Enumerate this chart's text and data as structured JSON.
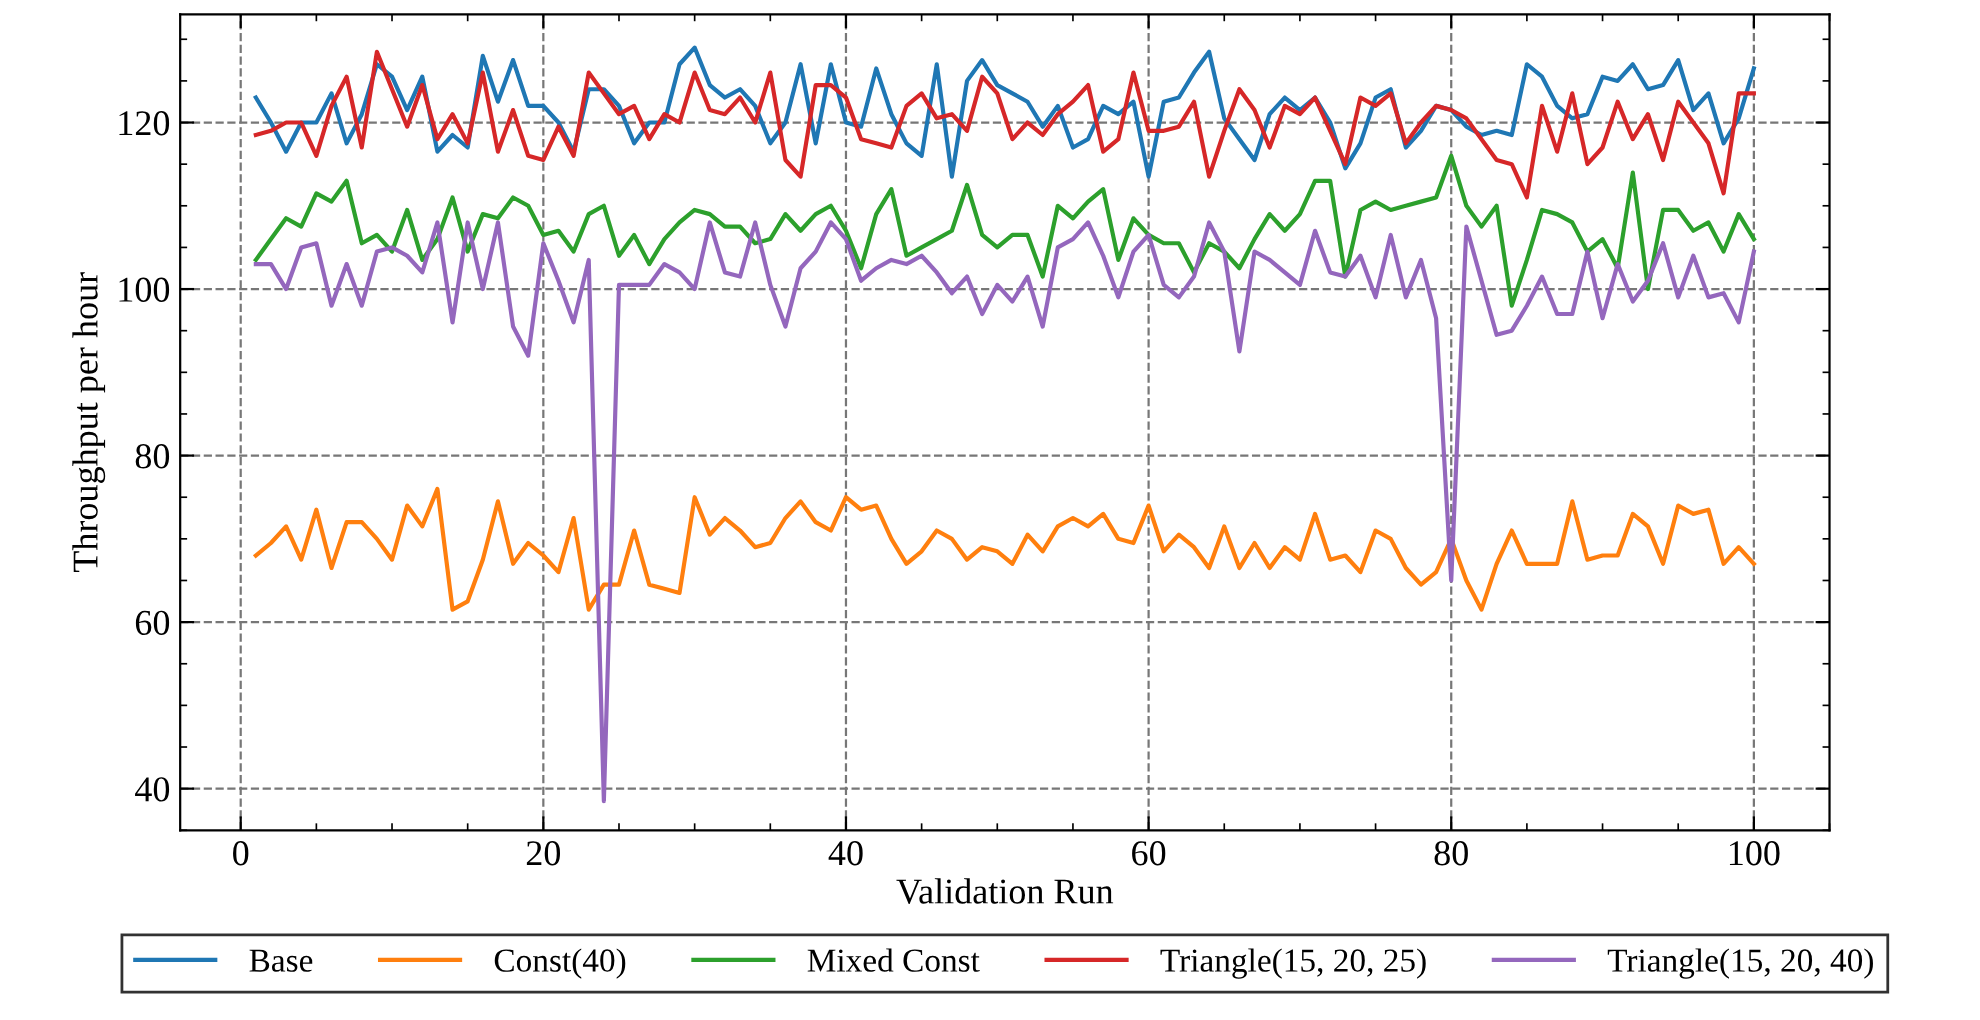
{
  "chart_data": {
    "type": "line",
    "xlabel": "Validation Run",
    "ylabel": "Throughput per hour",
    "x": [
      1,
      2,
      3,
      4,
      5,
      6,
      7,
      8,
      9,
      10,
      11,
      12,
      13,
      14,
      15,
      16,
      17,
      18,
      19,
      20,
      21,
      22,
      23,
      24,
      25,
      26,
      27,
      28,
      29,
      30,
      31,
      32,
      33,
      34,
      35,
      36,
      37,
      38,
      39,
      40,
      41,
      42,
      43,
      44,
      45,
      46,
      47,
      48,
      49,
      50,
      51,
      52,
      53,
      54,
      55,
      56,
      57,
      58,
      59,
      60,
      61,
      62,
      63,
      64,
      65,
      66,
      67,
      68,
      69,
      70,
      71,
      72,
      73,
      74,
      75,
      76,
      77,
      78,
      79,
      80,
      81,
      82,
      83,
      84,
      85,
      86,
      87,
      88,
      89,
      90,
      91,
      92,
      93,
      94,
      95,
      96,
      97,
      98,
      99,
      100
    ],
    "xlim": [
      -4,
      105
    ],
    "xticks": [
      0,
      20,
      40,
      60,
      80,
      100
    ],
    "ylim": [
      35,
      133
    ],
    "yticks": [
      40,
      60,
      80,
      100,
      120
    ],
    "grid": true,
    "legend": "bottom",
    "line_style": "solid",
    "marker": "none",
    "series": [
      {
        "name": "Base",
        "color": "#1f77b4",
        "values": [
          123,
          120,
          116.5,
          120,
          120,
          123.5,
          117.5,
          121,
          127,
          125.5,
          121.5,
          125.5,
          116.5,
          118.5,
          117,
          128,
          122.5,
          127.5,
          122,
          122,
          120,
          116.5,
          124,
          124,
          122,
          117.5,
          120,
          120,
          127,
          129,
          124.5,
          123,
          124,
          122,
          117.5,
          120,
          127,
          117.5,
          127,
          120,
          119.5,
          126.5,
          121,
          117.5,
          116,
          127,
          113.5,
          125,
          127.5,
          124.5,
          123.5,
          122.5,
          119.5,
          122,
          117,
          118,
          122,
          121,
          122.5,
          113.5,
          122.5,
          123,
          126,
          128.5,
          120.5,
          118,
          115.5,
          121,
          123,
          121.5,
          123,
          120,
          114.5,
          117.5,
          123,
          124,
          117,
          119,
          122,
          121.5,
          119.5,
          118.5,
          119,
          118.5,
          127,
          125.5,
          122,
          120.5,
          121,
          125.5,
          125,
          127,
          124,
          124.5,
          127.5,
          121.5,
          123.5,
          117.5,
          120.5,
          126.5
        ]
      },
      {
        "name": "Const(40)",
        "color": "#ff7f0e",
        "values": [
          68,
          69.5,
          71.5,
          67.5,
          73.5,
          66.5,
          72,
          72,
          70,
          67.5,
          74,
          71.5,
          76,
          61.5,
          62.5,
          67.5,
          74.5,
          67,
          69.5,
          68,
          66,
          72.5,
          61.5,
          64.5,
          64.5,
          71,
          64.5,
          64,
          63.5,
          75,
          70.5,
          72.5,
          71,
          69,
          69.5,
          72.5,
          74.5,
          72,
          71,
          75,
          73.5,
          74,
          70,
          67,
          68.5,
          71,
          70,
          67.5,
          69,
          68.5,
          67,
          70.5,
          68.5,
          71.5,
          72.5,
          71.5,
          73,
          70,
          69.5,
          74,
          68.5,
          70.5,
          69,
          66.5,
          71.5,
          66.5,
          69.5,
          66.5,
          69,
          67.5,
          73,
          67.5,
          68,
          66,
          71,
          70,
          66.5,
          64.5,
          66,
          70,
          65,
          61.5,
          67,
          71,
          67,
          67,
          67,
          74.5,
          67.5,
          68,
          68,
          73,
          71.5,
          67,
          74,
          73,
          73.5,
          67,
          69,
          67
        ]
      },
      {
        "name": "Mixed Const",
        "color": "#2ca02c",
        "values": [
          103.5,
          106,
          108.5,
          107.5,
          111.5,
          110.5,
          113,
          105.5,
          106.5,
          104.5,
          109.5,
          103.5,
          106,
          111,
          104.5,
          109,
          108.5,
          111,
          110,
          106.5,
          107,
          104.5,
          109,
          110,
          104,
          106.5,
          103,
          106,
          108,
          109.5,
          109,
          107.5,
          107.5,
          105.5,
          106,
          109,
          107,
          109,
          110,
          107,
          102.5,
          109,
          112,
          104,
          105,
          106,
          107,
          112.5,
          106.5,
          105,
          106.5,
          106.5,
          101.5,
          110,
          108.5,
          110.5,
          112,
          103.5,
          108.5,
          106.5,
          105.5,
          105.5,
          102,
          105.5,
          104.5,
          102.5,
          106,
          109,
          107,
          109,
          113,
          113,
          101.5,
          109.5,
          110.5,
          109.5,
          110,
          110.5,
          111,
          116,
          110,
          107.5,
          110,
          98,
          103.5,
          109.5,
          109,
          108,
          104.5,
          106,
          102.5,
          114,
          100,
          109.5,
          109.5,
          107,
          108,
          104.5,
          109,
          106
        ]
      },
      {
        "name": "Triangle(15, 20, 25)",
        "color": "#d62728",
        "values": [
          118.5,
          119,
          120,
          120,
          116,
          122,
          125.5,
          117,
          128.5,
          124,
          119.5,
          124.5,
          118,
          121,
          117.5,
          126,
          116.5,
          121.5,
          116,
          115.5,
          119.5,
          116,
          126,
          123.5,
          121,
          122,
          118,
          121,
          120,
          126,
          121.5,
          121,
          123,
          120,
          126,
          115.5,
          113.5,
          124.5,
          124.5,
          123,
          118,
          117.5,
          117,
          122,
          123.5,
          120.5,
          121,
          119,
          125.5,
          123.5,
          118,
          120,
          118.5,
          121,
          122.5,
          124.5,
          116.5,
          118,
          126,
          119,
          119,
          119.5,
          122.5,
          113.5,
          119,
          124,
          121.5,
          117,
          122,
          121,
          123,
          119,
          115,
          123,
          122,
          123.5,
          117.5,
          120,
          122,
          121.5,
          120.5,
          118,
          115.5,
          115,
          111,
          122,
          116.5,
          123.5,
          115,
          117,
          122.5,
          118,
          121,
          115.5,
          122.5,
          120,
          117.5,
          111.5,
          123.5,
          123.5
        ]
      },
      {
        "name": "Triangle(15, 20, 40)",
        "color": "#9467bd",
        "values": [
          103,
          103,
          100,
          105,
          105.5,
          98,
          103,
          98,
          104.5,
          105,
          104,
          102,
          108,
          96,
          108,
          100,
          108,
          95.5,
          92,
          105.5,
          101,
          96,
          103.5,
          38.5,
          100.5,
          100.5,
          100.5,
          103,
          102,
          100,
          108,
          102,
          101.5,
          108,
          100.5,
          95.5,
          102.5,
          104.5,
          108,
          106,
          101,
          102.5,
          103.5,
          103,
          104,
          102,
          99.5,
          101.5,
          97,
          100.5,
          98.5,
          101.5,
          95.5,
          105,
          106,
          108,
          104,
          99,
          104.5,
          106.5,
          100.5,
          99,
          101.5,
          108,
          104.5,
          92.5,
          104.5,
          103.5,
          102,
          100.5,
          107,
          102,
          101.5,
          104,
          99,
          106.5,
          99,
          103.5,
          96.5,
          65,
          107.5,
          101,
          94.5,
          95,
          98,
          101.5,
          97,
          97,
          104.5,
          96.5,
          103,
          98.5,
          101,
          105.5,
          99,
          104,
          99,
          99.5,
          96,
          104.5
        ]
      }
    ]
  }
}
